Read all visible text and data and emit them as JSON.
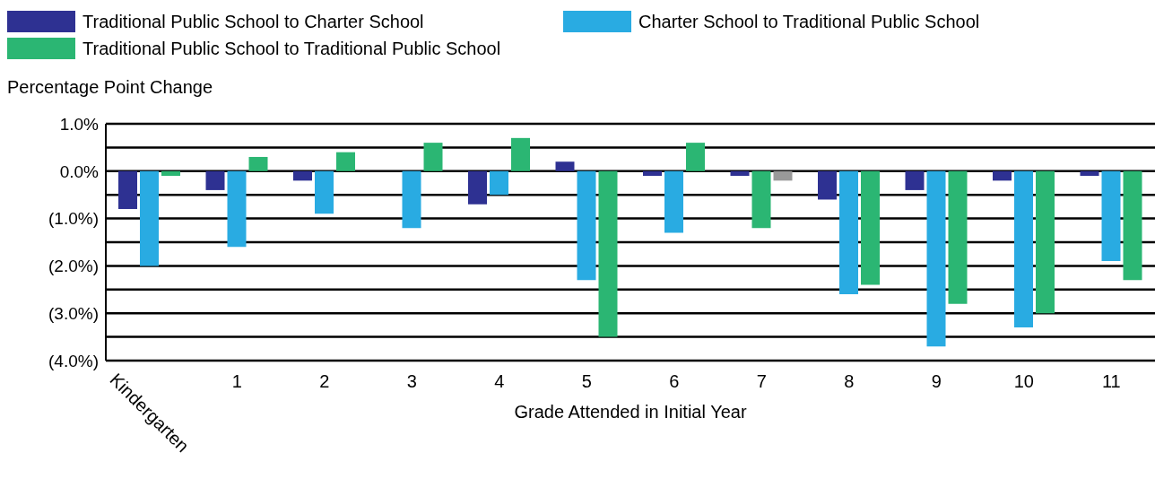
{
  "chart_data": {
    "type": "bar",
    "ylabel": "Percentage Point Change",
    "xlabel": "Grade Attended in Initial Year",
    "categories": [
      "Kindergarten",
      "1",
      "2",
      "3",
      "4",
      "5",
      "6",
      "7",
      "8",
      "9",
      "10",
      "11"
    ],
    "series": [
      {
        "name": "Traditional Public School to Charter School",
        "color": "#2e3192",
        "values": [
          -0.8,
          -0.4,
          -0.2,
          0,
          -0.7,
          0.2,
          -0.1,
          -0.1,
          -0.6,
          -0.4,
          -0.2,
          -0.1
        ]
      },
      {
        "name": "Charter School to Traditional Public School",
        "color": "#29abe2",
        "colors": [
          "#29abe2",
          "#29abe2",
          "#29abe2",
          "#29abe2",
          "#29abe2",
          "#29abe2",
          "#29abe2",
          "#2bb673",
          "#29abe2",
          "#29abe2",
          "#29abe2",
          "#29abe2"
        ],
        "values": [
          -2.0,
          -1.6,
          -0.9,
          -1.2,
          -0.5,
          -2.3,
          -1.3,
          -1.2,
          -2.6,
          -3.7,
          -3.3,
          -1.9
        ]
      },
      {
        "name": "Traditional Public School to Traditional Public School",
        "color": "#2bb673",
        "colors": [
          "#2bb673",
          "#2bb673",
          "#2bb673",
          "#2bb673",
          "#2bb673",
          "#2bb673",
          "#2bb673",
          "#999999",
          "#2bb673",
          "#2bb673",
          "#2bb673",
          "#2bb673"
        ],
        "values": [
          -0.1,
          0.3,
          0.4,
          0.6,
          0.7,
          -3.5,
          0.6,
          -0.2,
          -2.4,
          -2.8,
          -3.0,
          -2.3
        ]
      }
    ],
    "ylim": [
      -4,
      1
    ],
    "yticks": [
      {
        "value": 1,
        "label": "1.0%"
      },
      {
        "value": 0.5,
        "label": null
      },
      {
        "value": 0,
        "label": "0.0%"
      },
      {
        "value": -0.5,
        "label": null
      },
      {
        "value": -1,
        "label": "(1.0%)"
      },
      {
        "value": -1.5,
        "label": null
      },
      {
        "value": -2,
        "label": "(2.0%)"
      },
      {
        "value": -2.5,
        "label": null
      },
      {
        "value": -3,
        "label": "(3.0%)"
      },
      {
        "value": -3.5,
        "label": null
      },
      {
        "value": -4,
        "label": "(4.0%)"
      }
    ],
    "grid": "y",
    "legend": "top left"
  }
}
